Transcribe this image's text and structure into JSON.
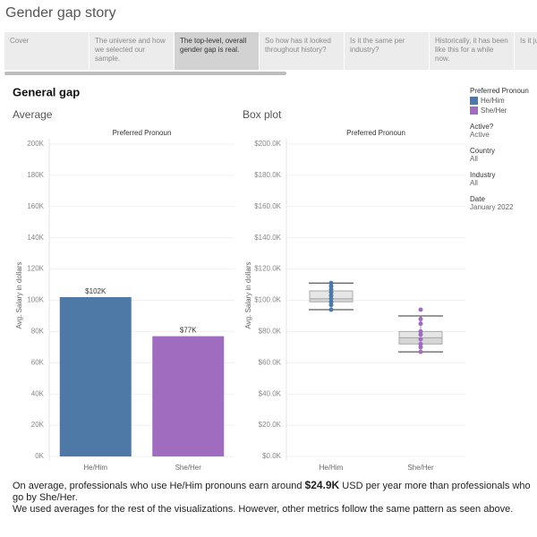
{
  "header": {
    "title": "Gender gap story"
  },
  "tabs": [
    "Cover",
    "The universe and how we selected our sample.",
    "The top-level, overall gender gap is real.",
    "So how has it looked throughout history?",
    "Is it the same per industry?",
    "Historically, it has been like this for a while now.",
    "Is it ju salary other e"
  ],
  "selected_tab": 2,
  "dashboard": {
    "title": "General gap"
  },
  "chart_data": [
    {
      "type": "bar",
      "title": "Average",
      "header": "Preferred Pronoun",
      "y_label": "Avg. Salary in dollars",
      "categories": [
        "He/Him",
        "She/Her"
      ],
      "values": [
        102000,
        77000
      ],
      "value_labels": [
        "$102K",
        "$77K"
      ],
      "colors": [
        "#4e79a7",
        "#a06cc0"
      ],
      "ylim": [
        0,
        200000
      ],
      "yticks": [
        {
          "value": 0,
          "label": "0K"
        },
        {
          "value": 20000,
          "label": "20K"
        },
        {
          "value": 40000,
          "label": "40K"
        },
        {
          "value": 60000,
          "label": "60K"
        },
        {
          "value": 80000,
          "label": "80K"
        },
        {
          "value": 100000,
          "label": "100K"
        },
        {
          "value": 120000,
          "label": "120K"
        },
        {
          "value": 140000,
          "label": "140K"
        },
        {
          "value": 160000,
          "label": "160K"
        },
        {
          "value": 180000,
          "label": "180K"
        },
        {
          "value": 200000,
          "label": "200K"
        }
      ],
      "grid": true
    },
    {
      "type": "box",
      "title": "Box plot",
      "header": "Preferred Pronoun",
      "y_label": "Avg. Salary in dollars",
      "categories": [
        "He/Him",
        "She/Her"
      ],
      "colors": [
        "#4e79a7",
        "#a06cc0"
      ],
      "boxes": [
        {
          "low": 94000,
          "q1": 99000,
          "median": 101000,
          "q3": 106000,
          "high": 111000,
          "points": [
            94000,
            97000,
            99000,
            101000,
            103000,
            105000,
            107000,
            109000,
            111000
          ]
        },
        {
          "low": 67000,
          "q1": 72000,
          "median": 76000,
          "q3": 80000,
          "high": 90000,
          "points": [
            67000,
            70000,
            72000,
            75000,
            78000,
            80000,
            85000,
            88000,
            94000
          ]
        }
      ],
      "ylim": [
        0,
        200000
      ],
      "yticks": [
        {
          "value": 0,
          "label": "$0.0K"
        },
        {
          "value": 20000,
          "label": "$20.0K"
        },
        {
          "value": 40000,
          "label": "$40.0K"
        },
        {
          "value": 60000,
          "label": "$60.0K"
        },
        {
          "value": 80000,
          "label": "$80.0K"
        },
        {
          "value": 100000,
          "label": "$100.0K"
        },
        {
          "value": 120000,
          "label": "$120.0K"
        },
        {
          "value": 140000,
          "label": "$140.0K"
        },
        {
          "value": 160000,
          "label": "$160.0K"
        },
        {
          "value": 180000,
          "label": "$180.0K"
        },
        {
          "value": 200000,
          "label": "$200.0K"
        }
      ],
      "grid": true
    }
  ],
  "legend": {
    "title": "Preferred Pronoun",
    "items": [
      {
        "name": "He/Him",
        "color": "#4e79a7"
      },
      {
        "name": "She/Her",
        "color": "#a06cc0"
      }
    ]
  },
  "filters": [
    {
      "label": "Active?",
      "value": "Active"
    },
    {
      "label": "Country",
      "value": "All"
    },
    {
      "label": "Industry",
      "value": "All"
    },
    {
      "label": "Date",
      "value": "January 2022"
    }
  ],
  "footer": {
    "before": "On average, professionals who use He/Him pronouns earn around",
    "highlight": "$24.9K",
    "after": "USD per year more than professionals who go by She/Her.",
    "line2": "We used averages for the rest of the visualizations. However, other metrics follow the same pattern as seen above."
  }
}
